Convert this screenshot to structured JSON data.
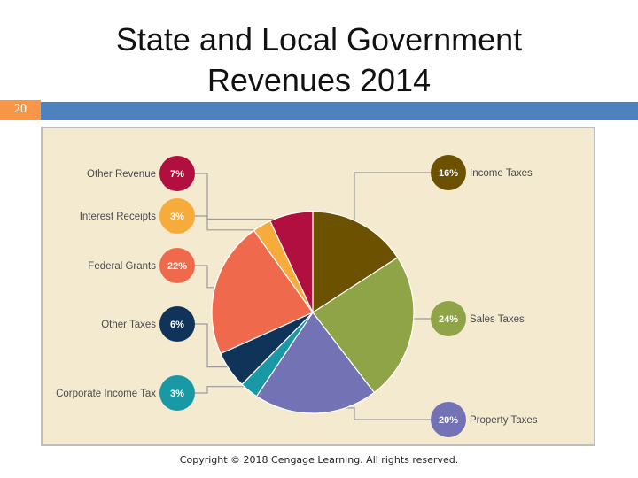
{
  "slide": {
    "title": "State and Local Government Revenues 2014",
    "number": "20",
    "copyright": "Copyright © 2018 Cengage Learning. All rights reserved."
  },
  "chart_data": {
    "type": "pie",
    "title": "State and Local Government Revenues 2014",
    "unit": "%",
    "slices": [
      {
        "label": "Income Taxes",
        "value": 16,
        "display": "16%",
        "color": "#6b5100"
      },
      {
        "label": "Sales Taxes",
        "value": 24,
        "display": "24%",
        "color": "#8fa446"
      },
      {
        "label": "Property Taxes",
        "value": 20,
        "display": "20%",
        "color": "#7272b4"
      },
      {
        "label": "Corporate Income Tax",
        "value": 3,
        "display": "3%",
        "color": "#1998a6"
      },
      {
        "label": "Other Taxes",
        "value": 6,
        "display": "6%",
        "color": "#0f3359"
      },
      {
        "label": "Federal Grants",
        "value": 22,
        "display": "22%",
        "color": "#ef6a4c"
      },
      {
        "label": "Interest Receipts",
        "value": 3,
        "display": "3%",
        "color": "#f7ab3b"
      },
      {
        "label": "Other Revenue",
        "value": 7,
        "display": "7%",
        "color": "#b10f3f"
      }
    ],
    "legend_placement": "callouts-left-and-right"
  },
  "colors": {
    "panel_bg": "#f3ead0",
    "accent_bar": "#4f81bd",
    "slide_number_bg": "#f79646",
    "leader_line": "#9a9a9a"
  }
}
